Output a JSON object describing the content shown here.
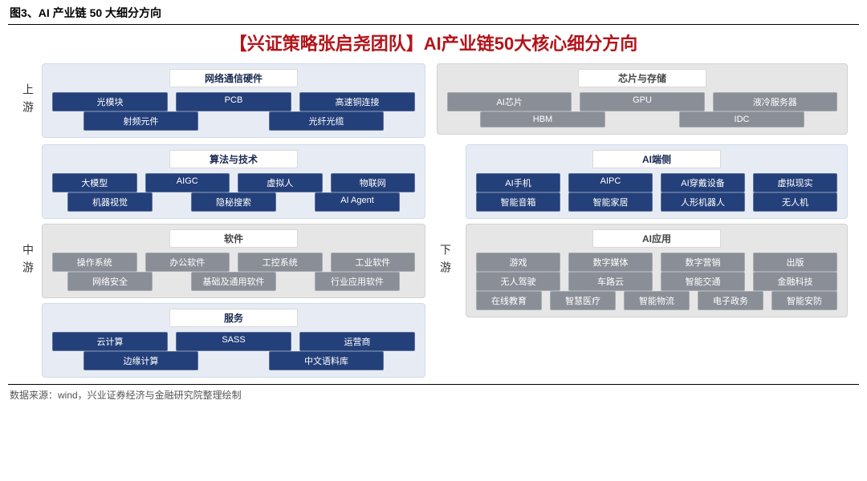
{
  "figure_caption": "图3、AI 产业链 50 大细分方向",
  "title_text": "【兴证策略张启尧团队】AI产业链50大核心细分方向",
  "title_color": "#b3141a",
  "title_fontsize": "22px",
  "footer_text": "数据来源：wind，兴业证券经济与金融研究院整理绘制",
  "colors": {
    "group_blue_bg": "#e7ecf4",
    "group_gray_bg": "#e6e6e6",
    "chip_blue": "#24407a",
    "chip_gray": "#8a8f97"
  },
  "streams": [
    {
      "label": "上游",
      "left": [
        {
          "title": "网络通信硬件",
          "style": "blue",
          "rows": [
            [
              "光模块",
              "PCB",
              "高速铜连接"
            ],
            [
              "射频元件",
              "光纤光缆"
            ]
          ],
          "row_cols": [
            3,
            3
          ]
        }
      ],
      "right": [
        {
          "title": "芯片与存储",
          "style": "gray",
          "rows": [
            [
              "AI芯片",
              "GPU",
              "液冷服务器"
            ],
            [
              "HBM",
              "IDC"
            ]
          ],
          "row_cols": [
            3,
            3
          ]
        }
      ]
    },
    {
      "label": "中游",
      "left": [
        {
          "title": "算法与技术",
          "style": "blue",
          "rows": [
            [
              "大模型",
              "AIGC",
              "虚拟人",
              "物联网"
            ],
            [
              "机器视觉",
              "隐秘搜索",
              "AI Agent"
            ]
          ],
          "row_cols": [
            4,
            4
          ]
        },
        {
          "title": "软件",
          "style": "gray",
          "rows": [
            [
              "操作系统",
              "办公软件",
              "工控系统",
              "工业软件"
            ],
            [
              "网络安全",
              "基础及通用软件",
              "行业应用软件"
            ]
          ],
          "row_cols": [
            4,
            4
          ]
        },
        {
          "title": "服务",
          "style": "blue",
          "rows": [
            [
              "云计算",
              "SASS",
              "运营商"
            ],
            [
              "边缘计算",
              "中文语料库"
            ]
          ],
          "row_cols": [
            3,
            3
          ]
        }
      ],
      "right_label": "下游",
      "right": [
        {
          "title": "AI端侧",
          "style": "blue",
          "rows": [
            [
              "AI手机",
              "AIPC",
              "AI穿戴设备",
              "虚拟现实"
            ],
            [
              "智能音箱",
              "智能家居",
              "人形机器人",
              "无人机"
            ]
          ],
          "row_cols": [
            4,
            4
          ]
        },
        {
          "title": "AI应用",
          "style": "gray",
          "rows": [
            [
              "游戏",
              "数字媒体",
              "数字营销",
              "出版"
            ],
            [
              "无人驾驶",
              "车路云",
              "智能交通",
              "金融科技"
            ],
            [
              "在线教育",
              "智慧医疗",
              "智能物流",
              "电子政务",
              "智能安防"
            ]
          ],
          "row_cols": [
            4,
            4,
            5
          ]
        }
      ]
    }
  ]
}
